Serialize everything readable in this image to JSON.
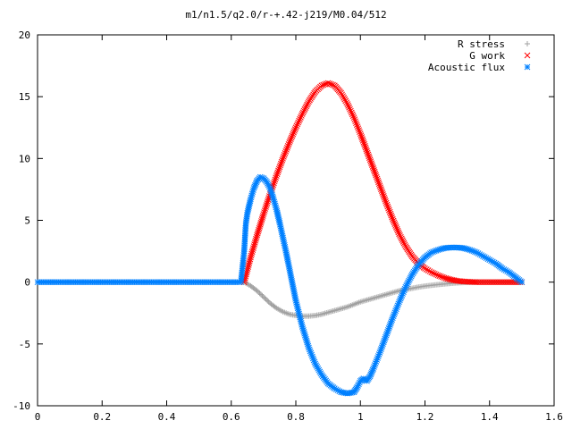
{
  "chart_data": {
    "type": "scatter",
    "title": "m1/n1.5/q2.0/r-+.42-j219/M0.04/512",
    "xlabel": "",
    "ylabel": "",
    "xlim": [
      0,
      1.6
    ],
    "ylim": [
      -10,
      20
    ],
    "xticks": [
      0,
      0.2,
      0.4,
      0.6,
      0.8,
      1,
      1.2,
      1.4,
      1.6
    ],
    "xtick_labels": [
      "0",
      "0.2",
      "0.4",
      "0.6",
      "0.8",
      "1",
      "1.2",
      "1.4",
      "1.6"
    ],
    "yticks": [
      -10,
      -5,
      0,
      5,
      10,
      15,
      20
    ],
    "ytick_labels": [
      "-10",
      "-5",
      "0",
      "5",
      "10",
      "15",
      "20"
    ],
    "grid": false,
    "legend_position": "top-right",
    "series": [
      {
        "name": "R stress",
        "marker": "+",
        "color": "#a0a0a0",
        "points": [
          [
            0.64,
            0.0
          ],
          [
            0.66,
            -0.3
          ],
          [
            0.68,
            -0.7
          ],
          [
            0.7,
            -1.2
          ],
          [
            0.72,
            -1.7
          ],
          [
            0.74,
            -2.1
          ],
          [
            0.76,
            -2.4
          ],
          [
            0.78,
            -2.6
          ],
          [
            0.8,
            -2.7
          ],
          [
            0.82,
            -2.75
          ],
          [
            0.84,
            -2.75
          ],
          [
            0.86,
            -2.7
          ],
          [
            0.88,
            -2.6
          ],
          [
            0.9,
            -2.45
          ],
          [
            0.92,
            -2.3
          ],
          [
            0.94,
            -2.15
          ],
          [
            0.96,
            -2.0
          ],
          [
            0.98,
            -1.8
          ],
          [
            1.0,
            -1.6
          ],
          [
            1.02,
            -1.45
          ],
          [
            1.04,
            -1.3
          ],
          [
            1.06,
            -1.15
          ],
          [
            1.08,
            -1.0
          ],
          [
            1.1,
            -0.85
          ],
          [
            1.12,
            -0.7
          ],
          [
            1.14,
            -0.6
          ],
          [
            1.16,
            -0.5
          ],
          [
            1.18,
            -0.4
          ],
          [
            1.2,
            -0.32
          ],
          [
            1.22,
            -0.26
          ],
          [
            1.24,
            -0.2
          ],
          [
            1.26,
            -0.15
          ],
          [
            1.28,
            -0.1
          ],
          [
            1.3,
            -0.06
          ],
          [
            1.32,
            -0.03
          ],
          [
            1.34,
            -0.01
          ],
          [
            1.36,
            0.0
          ],
          [
            1.4,
            0.0
          ],
          [
            1.45,
            0.0
          ],
          [
            1.5,
            0.0
          ]
        ]
      },
      {
        "name": "G work",
        "marker": "x",
        "color": "#ff0000",
        "points": [
          [
            0.64,
            0.0
          ],
          [
            0.66,
            2.0
          ],
          [
            0.68,
            3.8
          ],
          [
            0.7,
            5.5
          ],
          [
            0.72,
            7.1
          ],
          [
            0.74,
            8.6
          ],
          [
            0.76,
            10.0
          ],
          [
            0.78,
            11.3
          ],
          [
            0.8,
            12.5
          ],
          [
            0.82,
            13.6
          ],
          [
            0.84,
            14.6
          ],
          [
            0.86,
            15.4
          ],
          [
            0.88,
            15.9
          ],
          [
            0.9,
            16.1
          ],
          [
            0.92,
            15.9
          ],
          [
            0.94,
            15.3
          ],
          [
            0.96,
            14.4
          ],
          [
            0.98,
            13.3
          ],
          [
            1.0,
            12.0
          ],
          [
            1.02,
            10.6
          ],
          [
            1.04,
            9.2
          ],
          [
            1.06,
            7.8
          ],
          [
            1.08,
            6.4
          ],
          [
            1.1,
            5.1
          ],
          [
            1.12,
            3.9
          ],
          [
            1.14,
            2.9
          ],
          [
            1.16,
            2.1
          ],
          [
            1.18,
            1.5
          ],
          [
            1.2,
            1.1
          ],
          [
            1.22,
            0.8
          ],
          [
            1.24,
            0.55
          ],
          [
            1.26,
            0.35
          ],
          [
            1.28,
            0.2
          ],
          [
            1.3,
            0.1
          ],
          [
            1.32,
            0.05
          ],
          [
            1.34,
            0.02
          ],
          [
            1.36,
            0.0
          ],
          [
            1.4,
            0.0
          ],
          [
            1.45,
            0.0
          ],
          [
            1.5,
            0.0
          ]
        ]
      },
      {
        "name": "Acoustic flux",
        "marker": "*",
        "color": "#0080ff",
        "points": [
          [
            0.0,
            0.0
          ],
          [
            0.1,
            0.0
          ],
          [
            0.2,
            0.0
          ],
          [
            0.3,
            0.0
          ],
          [
            0.4,
            0.0
          ],
          [
            0.5,
            0.0
          ],
          [
            0.6,
            0.0
          ],
          [
            0.63,
            0.0
          ],
          [
            0.64,
            2.5
          ],
          [
            0.645,
            4.7
          ],
          [
            0.65,
            5.6
          ],
          [
            0.66,
            6.7
          ],
          [
            0.67,
            7.6
          ],
          [
            0.68,
            8.2
          ],
          [
            0.69,
            8.5
          ],
          [
            0.7,
            8.4
          ],
          [
            0.71,
            8.1
          ],
          [
            0.72,
            7.6
          ],
          [
            0.73,
            6.8
          ],
          [
            0.74,
            5.9
          ],
          [
            0.75,
            4.8
          ],
          [
            0.76,
            3.6
          ],
          [
            0.77,
            2.4
          ],
          [
            0.78,
            1.1
          ],
          [
            0.79,
            -0.2
          ],
          [
            0.8,
            -1.5
          ],
          [
            0.82,
            -3.6
          ],
          [
            0.84,
            -5.3
          ],
          [
            0.86,
            -6.6
          ],
          [
            0.88,
            -7.5
          ],
          [
            0.9,
            -8.2
          ],
          [
            0.92,
            -8.6
          ],
          [
            0.94,
            -8.9
          ],
          [
            0.96,
            -9.0
          ],
          [
            0.98,
            -8.9
          ],
          [
            0.99,
            -8.5
          ],
          [
            1.0,
            -8.0
          ],
          [
            1.01,
            -7.8
          ],
          [
            1.02,
            -8.0
          ],
          [
            1.03,
            -7.6
          ],
          [
            1.04,
            -7.0
          ],
          [
            1.06,
            -5.7
          ],
          [
            1.08,
            -4.3
          ],
          [
            1.1,
            -2.9
          ],
          [
            1.12,
            -1.6
          ],
          [
            1.14,
            -0.4
          ],
          [
            1.16,
            0.6
          ],
          [
            1.18,
            1.4
          ],
          [
            1.2,
            2.0
          ],
          [
            1.22,
            2.4
          ],
          [
            1.24,
            2.6
          ],
          [
            1.26,
            2.75
          ],
          [
            1.28,
            2.8
          ],
          [
            1.3,
            2.8
          ],
          [
            1.32,
            2.75
          ],
          [
            1.34,
            2.6
          ],
          [
            1.36,
            2.4
          ],
          [
            1.38,
            2.1
          ],
          [
            1.4,
            1.8
          ],
          [
            1.42,
            1.5
          ],
          [
            1.44,
            1.1
          ],
          [
            1.46,
            0.8
          ],
          [
            1.48,
            0.4
          ],
          [
            1.5,
            0.0
          ]
        ]
      }
    ]
  }
}
